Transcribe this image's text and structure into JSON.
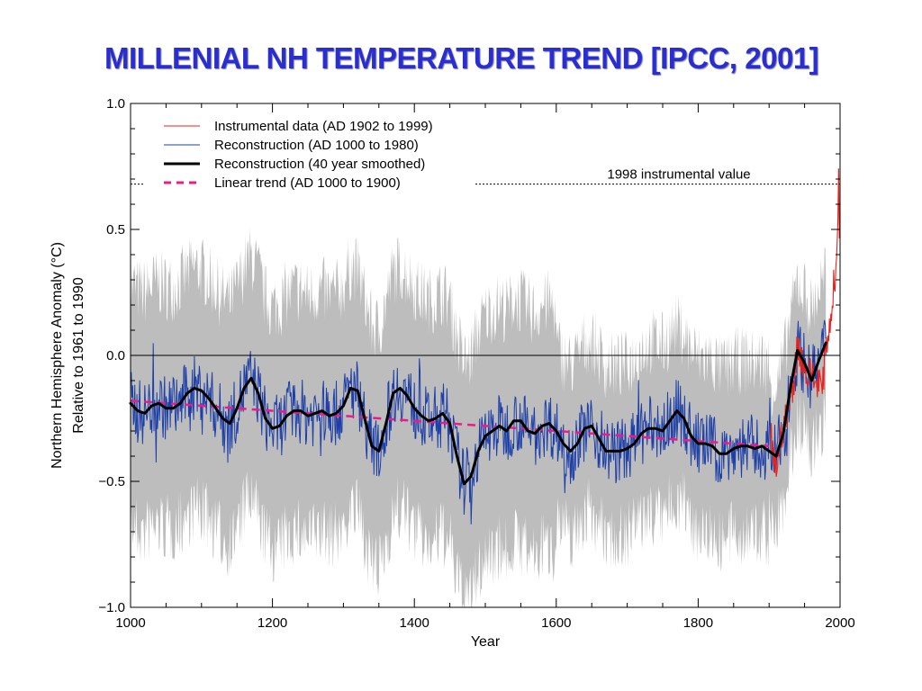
{
  "slide": {
    "title": "MILLENIAL NH TEMPERATURE TREND [IPCC, 2001]"
  },
  "chart_data": {
    "type": "line",
    "xlabel": "Year",
    "ylabel_line1": "Northern Hemisphere Anomaly (°C)",
    "ylabel_line2": "Relative to 1961 to 1990",
    "xlim": [
      1000,
      2000
    ],
    "ylim": [
      -1.0,
      1.0
    ],
    "x_ticks": [
      1000,
      1200,
      1400,
      1600,
      1800,
      2000
    ],
    "x_tick_labels": [
      "1000",
      "1200",
      "1400",
      "1600",
      "1800",
      "2000"
    ],
    "y_ticks": [
      -1.0,
      -0.5,
      0.0,
      0.5,
      1.0
    ],
    "y_tick_labels": [
      "−1.0",
      "−0.5",
      "0.0",
      "0.5",
      "1.0"
    ],
    "grid": false,
    "legend_placement": "top-left",
    "colors": {
      "instrumental": "#e8211b",
      "reconstruction": "#1d3fa8",
      "smoothed": "#000000",
      "trend": "#ec1b8c",
      "uncertainty": "#bdbdbd"
    },
    "series": [
      {
        "name": "Instrumental data (AD 1902 to 1999)",
        "style": "thin-line",
        "x": [
          1902,
          1905,
          1910,
          1915,
          1920,
          1925,
          1930,
          1935,
          1940,
          1945,
          1950,
          1955,
          1960,
          1965,
          1970,
          1975,
          1980,
          1985,
          1990,
          1995,
          1998,
          1999
        ],
        "y": [
          -0.3,
          -0.4,
          -0.45,
          -0.35,
          -0.28,
          -0.25,
          -0.15,
          -0.1,
          0.05,
          0.0,
          -0.05,
          -0.1,
          -0.05,
          -0.12,
          -0.08,
          -0.15,
          0.05,
          0.1,
          0.25,
          0.35,
          0.68,
          0.45
        ]
      },
      {
        "name": "Reconstruction (AD 1000 to 1980)",
        "style": "thin-line",
        "x": [
          1000,
          1100,
          1200,
          1300,
          1400,
          1500,
          1600,
          1700,
          1800,
          1900,
          1980
        ],
        "y": [
          -0.2,
          -0.15,
          -0.25,
          -0.2,
          -0.3,
          -0.3,
          -0.32,
          -0.35,
          -0.33,
          -0.38,
          0.0
        ]
      },
      {
        "name": "Reconstruction (40 year smoothed)",
        "style": "thick-line",
        "x": [
          1000,
          1010,
          1020,
          1030,
          1040,
          1050,
          1060,
          1070,
          1080,
          1090,
          1100,
          1110,
          1120,
          1130,
          1140,
          1150,
          1160,
          1170,
          1180,
          1190,
          1200,
          1210,
          1220,
          1230,
          1240,
          1250,
          1260,
          1270,
          1280,
          1290,
          1300,
          1310,
          1320,
          1330,
          1340,
          1350,
          1360,
          1370,
          1380,
          1390,
          1400,
          1410,
          1420,
          1430,
          1440,
          1450,
          1460,
          1470,
          1480,
          1490,
          1500,
          1510,
          1520,
          1530,
          1540,
          1550,
          1560,
          1570,
          1580,
          1590,
          1600,
          1610,
          1620,
          1630,
          1640,
          1650,
          1660,
          1670,
          1680,
          1690,
          1700,
          1710,
          1720,
          1730,
          1740,
          1750,
          1760,
          1770,
          1780,
          1790,
          1800,
          1810,
          1820,
          1830,
          1840,
          1850,
          1860,
          1870,
          1880,
          1890,
          1900,
          1910,
          1920,
          1930,
          1940,
          1950,
          1960,
          1970,
          1980
        ],
        "y": [
          -0.19,
          -0.22,
          -0.23,
          -0.2,
          -0.19,
          -0.21,
          -0.21,
          -0.19,
          -0.15,
          -0.13,
          -0.14,
          -0.17,
          -0.21,
          -0.25,
          -0.27,
          -0.21,
          -0.13,
          -0.09,
          -0.15,
          -0.25,
          -0.29,
          -0.28,
          -0.24,
          -0.22,
          -0.22,
          -0.24,
          -0.23,
          -0.22,
          -0.24,
          -0.23,
          -0.2,
          -0.13,
          -0.14,
          -0.25,
          -0.36,
          -0.38,
          -0.27,
          -0.15,
          -0.13,
          -0.16,
          -0.21,
          -0.24,
          -0.26,
          -0.25,
          -0.23,
          -0.27,
          -0.4,
          -0.51,
          -0.48,
          -0.38,
          -0.32,
          -0.3,
          -0.28,
          -0.3,
          -0.26,
          -0.26,
          -0.3,
          -0.31,
          -0.28,
          -0.27,
          -0.3,
          -0.35,
          -0.38,
          -0.35,
          -0.29,
          -0.28,
          -0.33,
          -0.38,
          -0.38,
          -0.38,
          -0.37,
          -0.35,
          -0.31,
          -0.29,
          -0.29,
          -0.3,
          -0.26,
          -0.22,
          -0.25,
          -0.32,
          -0.35,
          -0.35,
          -0.36,
          -0.39,
          -0.39,
          -0.37,
          -0.36,
          -0.36,
          -0.37,
          -0.36,
          -0.38,
          -0.4,
          -0.31,
          -0.13,
          0.02,
          -0.03,
          -0.1,
          -0.02,
          0.05
        ]
      },
      {
        "name": "Linear trend (AD 1000 to 1900)",
        "style": "dashed-line",
        "x": [
          1000,
          1900
        ],
        "y": [
          -0.18,
          -0.36
        ]
      }
    ],
    "annotations": [
      {
        "text": "1998 instrumental value",
        "y": 0.68
      }
    ]
  }
}
